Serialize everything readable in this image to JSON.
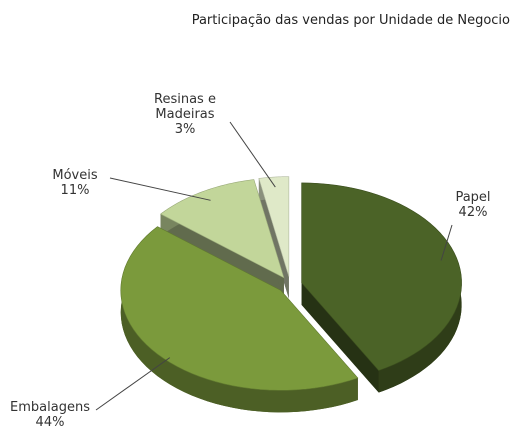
{
  "chart_data": {
    "type": "pie",
    "title": "Participação das vendas por Unidade de Negocio",
    "categories": [
      "Papel",
      "Embalagens",
      "Móveis",
      "Resinas e Madeiras"
    ],
    "values": [
      42,
      44,
      11,
      3
    ],
    "value_labels": [
      "42%",
      "44%",
      "11%",
      "3%"
    ],
    "colors": [
      "#4b6327",
      "#7b9a3c",
      "#c2d69a",
      "#dfe9c8"
    ]
  }
}
